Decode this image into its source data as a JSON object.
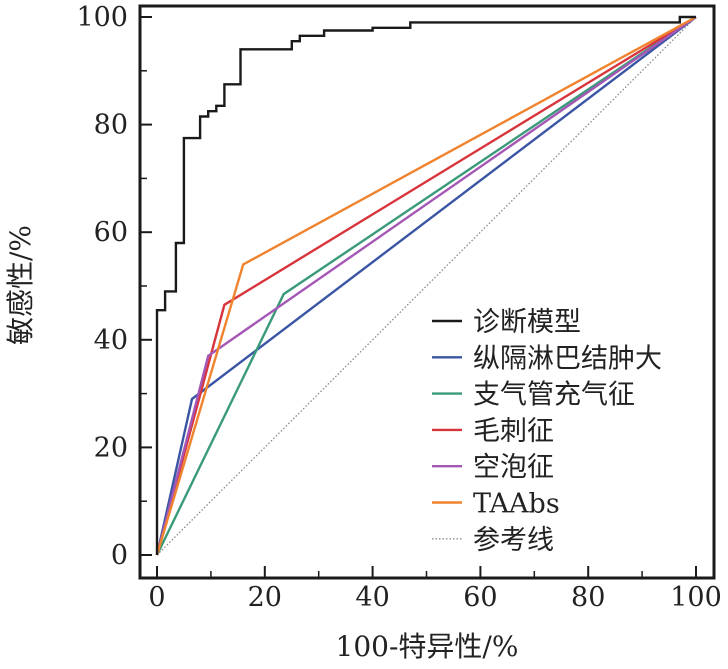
{
  "chart_data": {
    "type": "line",
    "xlabel": "100-特异性/%",
    "ylabel": "敏感性/%",
    "xlim": [
      0,
      100
    ],
    "ylim": [
      0,
      100
    ],
    "xticks": [
      "0",
      "20",
      "40",
      "60",
      "80",
      "100"
    ],
    "yticks": [
      "0",
      "20",
      "40",
      "60",
      "80",
      "100"
    ],
    "grid": false,
    "legend_position": "bottom-right",
    "series": [
      {
        "name": "诊断模型",
        "color": "#1a1a1a",
        "style": "step",
        "points": [
          [
            0,
            0
          ],
          [
            0,
            45.5
          ],
          [
            1.5,
            45.5
          ],
          [
            1.5,
            49
          ],
          [
            3.5,
            49
          ],
          [
            3.5,
            58
          ],
          [
            5,
            58
          ],
          [
            5,
            77.5
          ],
          [
            8,
            77.5
          ],
          [
            8,
            81.5
          ],
          [
            9.5,
            81.5
          ],
          [
            9.5,
            82.5
          ],
          [
            11,
            82.5
          ],
          [
            11,
            83.5
          ],
          [
            12.5,
            83.5
          ],
          [
            12.5,
            87.5
          ],
          [
            15.5,
            87.5
          ],
          [
            15.5,
            94
          ],
          [
            25,
            94
          ],
          [
            25,
            95.5
          ],
          [
            26.5,
            95.5
          ],
          [
            26.5,
            96.5
          ],
          [
            31,
            96.5
          ],
          [
            31,
            97.5
          ],
          [
            40,
            97.5
          ],
          [
            40,
            98
          ],
          [
            47,
            98
          ],
          [
            47,
            99
          ],
          [
            97,
            99
          ],
          [
            97,
            100
          ],
          [
            100,
            100
          ]
        ]
      },
      {
        "name": "纵隔淋巴结肿大",
        "color": "#3a55a4",
        "points": [
          [
            0,
            0
          ],
          [
            6.5,
            29
          ],
          [
            100,
            100
          ]
        ]
      },
      {
        "name": "支气管充气征",
        "color": "#3a9a7a",
        "points": [
          [
            0,
            0
          ],
          [
            23.5,
            48.5
          ],
          [
            100,
            100
          ]
        ]
      },
      {
        "name": "毛刺征",
        "color": "#d8343b",
        "points": [
          [
            0,
            0
          ],
          [
            12.5,
            46.5
          ],
          [
            100,
            100
          ]
        ]
      },
      {
        "name": "空泡征",
        "color": "#a457b5",
        "points": [
          [
            0,
            0
          ],
          [
            9.5,
            37
          ],
          [
            100,
            100
          ]
        ]
      },
      {
        "name": "TAAbs",
        "color": "#f0832e",
        "points": [
          [
            0,
            0
          ],
          [
            16,
            54
          ],
          [
            100,
            100
          ]
        ]
      },
      {
        "name": "参考线",
        "color": "#8a8a8a",
        "style": "dotted",
        "points": [
          [
            0,
            0
          ],
          [
            100,
            100
          ]
        ]
      }
    ]
  }
}
